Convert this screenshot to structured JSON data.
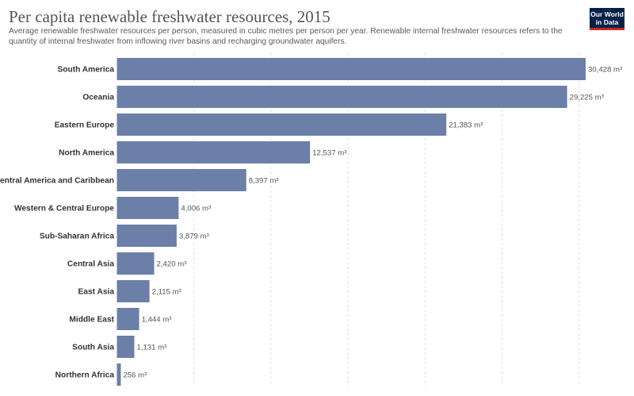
{
  "header": {
    "title": "Per capita renewable freshwater resources, 2015",
    "subtitle": "Average renewable freshwater resources per person, measured in cubic metres per person per year. Renewable internal freshwater resources refers to the quantity of internal freshwater from inflowing river basins and recharging groundwater aquifers.",
    "logo_line1": "Our World",
    "logo_line2": "in Data"
  },
  "colors": {
    "bar": "#6b7fa8",
    "grid": "#dddddd",
    "label": "#333333",
    "value_label": "#555555",
    "logo_bg": "#002147",
    "logo_accent": "#ce261e"
  },
  "chart_data": {
    "type": "bar",
    "orientation": "horizontal",
    "unit_suffix": "m³",
    "categories": [
      "South America",
      "Oceania",
      "Eastern Europe",
      "North America",
      "Central America and Caribbean",
      "Western & Central Europe",
      "Sub-Saharan Africa",
      "Central Asia",
      "East Asia",
      "Middle East",
      "South Asia",
      "Northern Africa"
    ],
    "values": [
      30428,
      29225,
      21383,
      12537,
      8397,
      4006,
      3879,
      2420,
      2115,
      1444,
      1131,
      256
    ],
    "value_labels": [
      "30,428",
      "29,225",
      "21,383",
      "12,537",
      "8,397",
      "4,006",
      "3,879",
      "2,420",
      "2,115",
      "1,444",
      "1,131",
      "256"
    ],
    "xlim": [
      0,
      30428
    ],
    "grid": true,
    "grid_ticks": [
      5000,
      10000,
      15000,
      20000,
      25000,
      30000
    ],
    "legend": "none"
  }
}
